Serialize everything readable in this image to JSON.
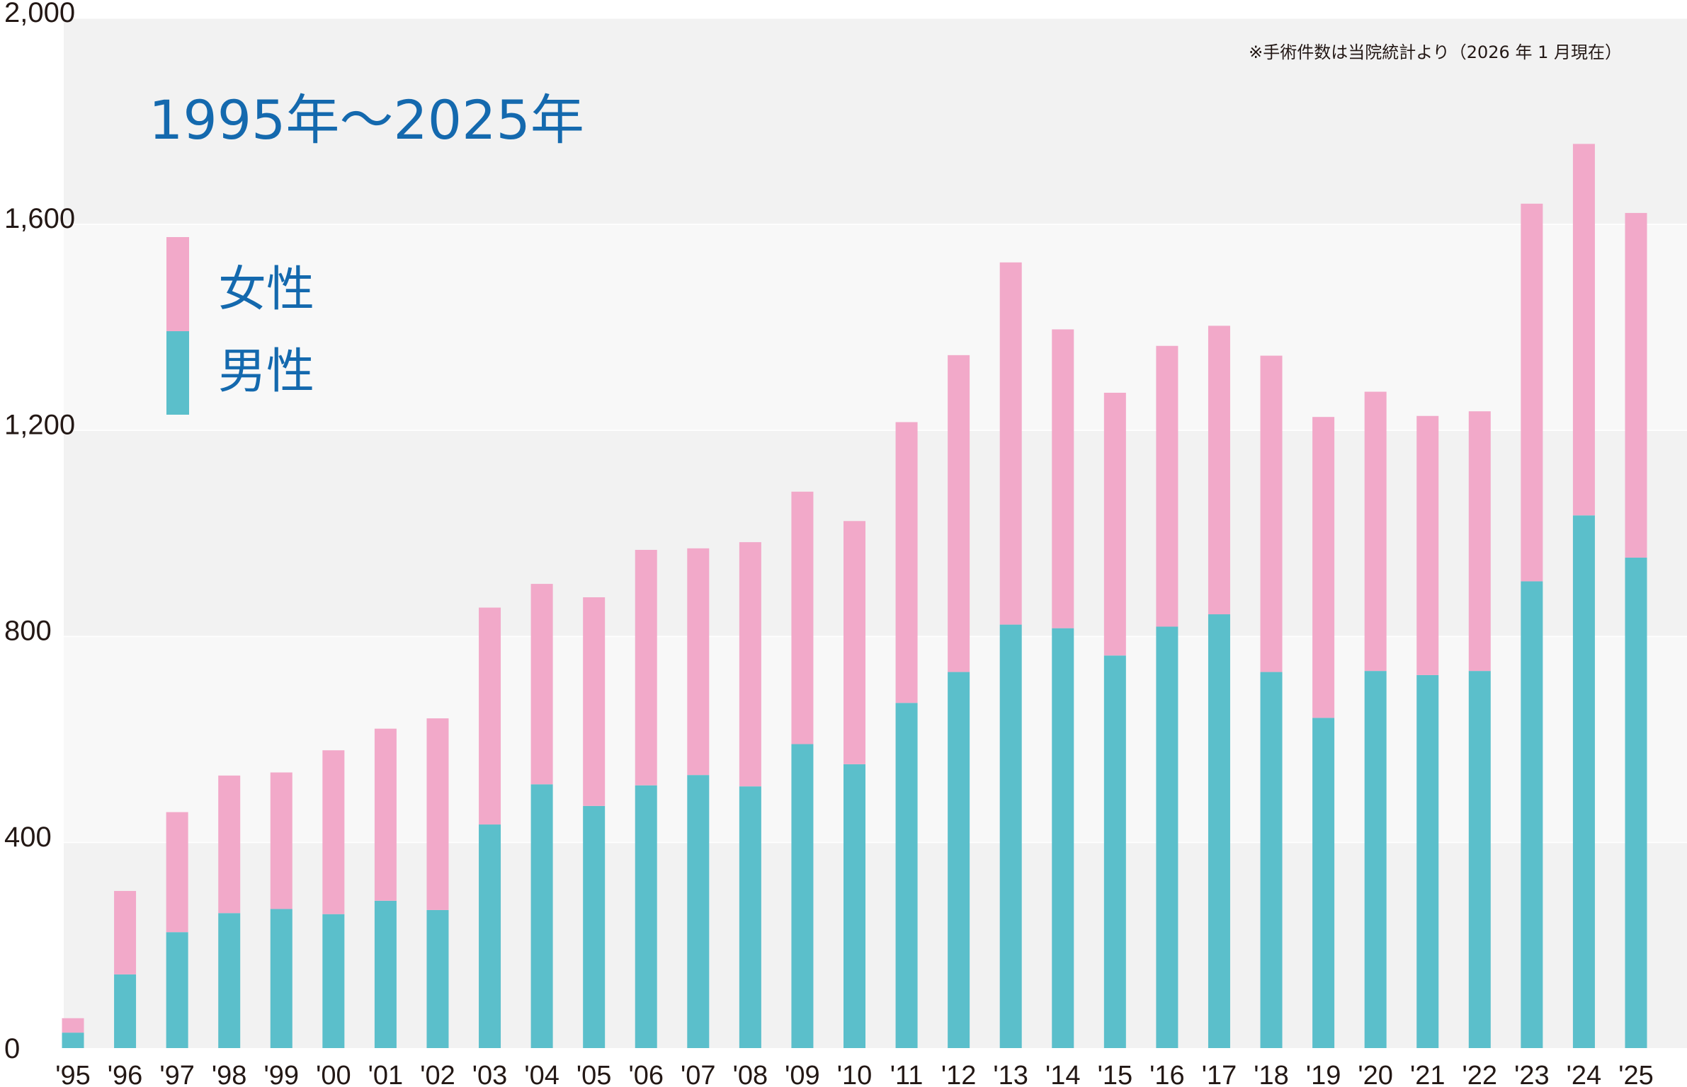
{
  "chart_data": {
    "type": "bar",
    "stacked": true,
    "title": "1995年～2025年",
    "note": "※手術件数は当院統計より（2026 年 1 月現在）",
    "categories": [
      "'95",
      "'96",
      "'97",
      "'98",
      "'99",
      "'00",
      "'01",
      "'02",
      "'03",
      "'04",
      "'05",
      "'06",
      "'07",
      "'08",
      "'09",
      "'10",
      "'11",
      "'12",
      "'13",
      "'14",
      "'15",
      "'16",
      "'17",
      "'18",
      "'19",
      "'20",
      "'21",
      "'22",
      "'23",
      "'24",
      "'25"
    ],
    "series": [
      {
        "name": "男性",
        "color": "#5bbfcb",
        "values": [
          30,
          143,
          225,
          262,
          270,
          260,
          286,
          268,
          434,
          512,
          470,
          510,
          530,
          508,
          590,
          551,
          670,
          730,
          822,
          815,
          762,
          818,
          842,
          730,
          641,
          732,
          724,
          732,
          906,
          1034,
          952
        ]
      },
      {
        "name": "女性",
        "color": "#f2a9c9",
        "values": [
          28,
          162,
          233,
          267,
          265,
          318,
          334,
          372,
          421,
          389,
          405,
          457,
          440,
          474,
          490,
          472,
          545,
          615,
          703,
          580,
          510,
          545,
          560,
          614,
          584,
          542,
          503,
          504,
          733,
          721,
          669
        ]
      }
    ],
    "yticks": [
      "0",
      "400",
      "800",
      "1,200",
      "1,600",
      "2,000"
    ],
    "ylim": [
      0,
      2000
    ],
    "legend_position": "top-left",
    "grid": "alternating horizontal bands"
  }
}
